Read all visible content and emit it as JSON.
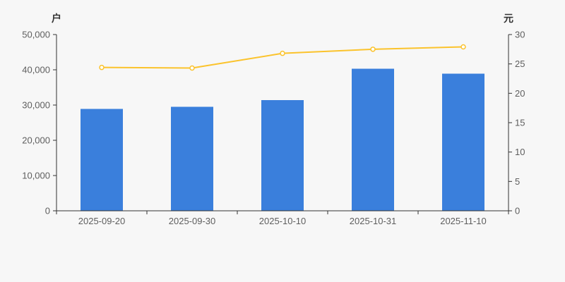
{
  "colors": {
    "background": "#f7f7f7",
    "bar": "#3a7fdc",
    "line": "#fbc32c",
    "marker_fill": "#ffffff",
    "axis_line": "#333333",
    "tick_label": "#5e5e5e",
    "axis_name": "#333333"
  },
  "chart_data": {
    "type": "combo",
    "title": "",
    "categories": [
      "2025-09-20",
      "2025-09-30",
      "2025-10-10",
      "2025-10-31",
      "2025-11-10"
    ],
    "series": [
      {
        "name": "households-bar-series",
        "type": "bar",
        "axis": "left",
        "values": [
          28900,
          29500,
          31400,
          40300,
          38900
        ]
      },
      {
        "name": "value-line-series",
        "type": "line",
        "axis": "right",
        "values": [
          24.4,
          24.3,
          26.8,
          27.5,
          27.9
        ]
      }
    ],
    "left_axis": {
      "name": "户",
      "min": 0,
      "max": 50000,
      "tick_values": [
        0,
        10000,
        20000,
        30000,
        40000,
        50000
      ],
      "tick_labels": [
        "0",
        "10,000",
        "20,000",
        "30,000",
        "40,000",
        "50,000"
      ]
    },
    "right_axis": {
      "name": "元",
      "min": 0,
      "max": 30,
      "tick_values": [
        0,
        5,
        10,
        15,
        20,
        25,
        30
      ],
      "tick_labels": [
        "0",
        "5",
        "10",
        "15",
        "20",
        "25",
        "30"
      ]
    },
    "legend": "none",
    "grid": "off"
  }
}
